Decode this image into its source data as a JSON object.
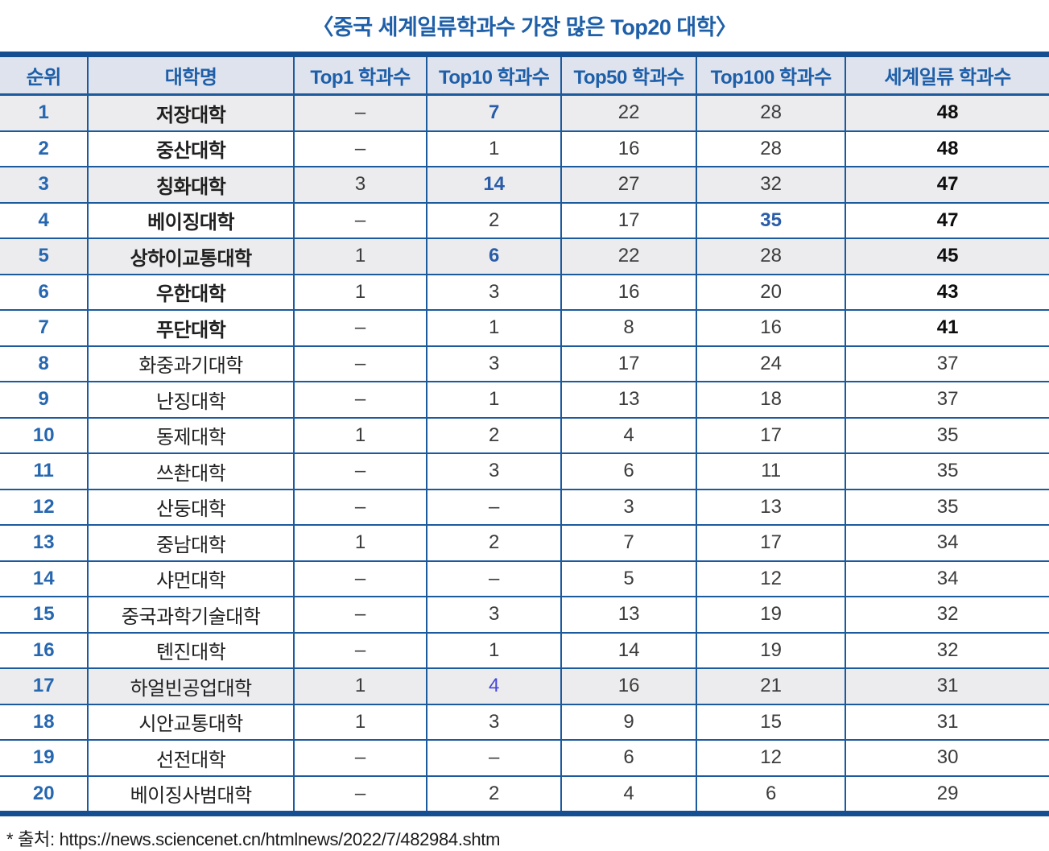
{
  "title": "〈중국 세계일류학과수 가장 많은 Top20 대학〉",
  "source_note": "* 출처: https://news.sciencenet.cn/htmlnews/2022/7/482984.shtm",
  "colors": {
    "title_blue": "#1E5FA8",
    "header_bg": "#DEE3EE",
    "shaded_row_bg": "#ECECEE",
    "border_blue": "#1C5A9E",
    "thick_border_blue": "#164E92",
    "rank_blue": "#2667B0",
    "accent_blue": "#2A5CA8",
    "accent_indigo": "#4545D8",
    "body_text": "#3C3C3C"
  },
  "table": {
    "headers": [
      "순위",
      "대학명",
      "Top1 학과수",
      "Top10 학과수",
      "Top50 학과수",
      "Top100 학과수",
      "세계일류 학과수"
    ],
    "rows": [
      {
        "rank": "1",
        "name": "저장대학",
        "bold": true,
        "shaded": true,
        "top1": "–",
        "top10": "7",
        "top50": "22",
        "top100": "28",
        "total": "48",
        "accents": {
          "top10": "blue"
        }
      },
      {
        "rank": "2",
        "name": "중산대학",
        "bold": true,
        "shaded": false,
        "top1": "–",
        "top10": "1",
        "top50": "16",
        "top100": "28",
        "total": "48",
        "accents": {}
      },
      {
        "rank": "3",
        "name": "칭화대학",
        "bold": true,
        "shaded": true,
        "top1": "3",
        "top10": "14",
        "top50": "27",
        "top100": "32",
        "total": "47",
        "accents": {
          "top10": "blue"
        }
      },
      {
        "rank": "4",
        "name": "베이징대학",
        "bold": true,
        "shaded": false,
        "top1": "–",
        "top10": "2",
        "top50": "17",
        "top100": "35",
        "total": "47",
        "accents": {
          "top100": "blue"
        }
      },
      {
        "rank": "5",
        "name": "상하이교통대학",
        "bold": true,
        "shaded": true,
        "top1": "1",
        "top10": "6",
        "top50": "22",
        "top100": "28",
        "total": "45",
        "accents": {
          "top10": "blue"
        }
      },
      {
        "rank": "6",
        "name": "우한대학",
        "bold": true,
        "shaded": false,
        "top1": "1",
        "top10": "3",
        "top50": "16",
        "top100": "20",
        "total": "43",
        "accents": {}
      },
      {
        "rank": "7",
        "name": "푸단대학",
        "bold": true,
        "shaded": false,
        "top1": "–",
        "top10": "1",
        "top50": "8",
        "top100": "16",
        "total": "41",
        "accents": {}
      },
      {
        "rank": "8",
        "name": "화중과기대학",
        "bold": false,
        "shaded": false,
        "top1": "–",
        "top10": "3",
        "top50": "17",
        "top100": "24",
        "total": "37",
        "accents": {}
      },
      {
        "rank": "9",
        "name": "난징대학",
        "bold": false,
        "shaded": false,
        "top1": "–",
        "top10": "1",
        "top50": "13",
        "top100": "18",
        "total": "37",
        "accents": {}
      },
      {
        "rank": "10",
        "name": "동제대학",
        "bold": false,
        "shaded": false,
        "top1": "1",
        "top10": "2",
        "top50": "4",
        "top100": "17",
        "total": "35",
        "accents": {}
      },
      {
        "rank": "11",
        "name": "쓰촨대학",
        "bold": false,
        "shaded": false,
        "top1": "–",
        "top10": "3",
        "top50": "6",
        "top100": "11",
        "total": "35",
        "accents": {}
      },
      {
        "rank": "12",
        "name": "산둥대학",
        "bold": false,
        "shaded": false,
        "top1": "–",
        "top10": "–",
        "top50": "3",
        "top100": "13",
        "total": "35",
        "accents": {}
      },
      {
        "rank": "13",
        "name": "중남대학",
        "bold": false,
        "shaded": false,
        "top1": "1",
        "top10": "2",
        "top50": "7",
        "top100": "17",
        "total": "34",
        "accents": {}
      },
      {
        "rank": "14",
        "name": "샤먼대학",
        "bold": false,
        "shaded": false,
        "top1": "–",
        "top10": "–",
        "top50": "5",
        "top100": "12",
        "total": "34",
        "accents": {}
      },
      {
        "rank": "15",
        "name": "중국과학기술대학",
        "bold": false,
        "shaded": false,
        "top1": "–",
        "top10": "3",
        "top50": "13",
        "top100": "19",
        "total": "32",
        "accents": {}
      },
      {
        "rank": "16",
        "name": "톈진대학",
        "bold": false,
        "shaded": false,
        "top1": "–",
        "top10": "1",
        "top50": "14",
        "top100": "19",
        "total": "32",
        "accents": {}
      },
      {
        "rank": "17",
        "name": "하얼빈공업대학",
        "bold": false,
        "shaded": true,
        "top1": "1",
        "top10": "4",
        "top50": "16",
        "top100": "21",
        "total": "31",
        "accents": {
          "top10": "indigo"
        }
      },
      {
        "rank": "18",
        "name": "시안교통대학",
        "bold": false,
        "shaded": false,
        "top1": "1",
        "top10": "3",
        "top50": "9",
        "top100": "15",
        "total": "31",
        "accents": {}
      },
      {
        "rank": "19",
        "name": "선전대학",
        "bold": false,
        "shaded": false,
        "top1": "–",
        "top10": "–",
        "top50": "6",
        "top100": "12",
        "total": "30",
        "accents": {}
      },
      {
        "rank": "20",
        "name": "베이징사범대학",
        "bold": false,
        "shaded": false,
        "top1": "–",
        "top10": "2",
        "top50": "4",
        "top100": "6",
        "total": "29",
        "accents": {}
      }
    ]
  }
}
